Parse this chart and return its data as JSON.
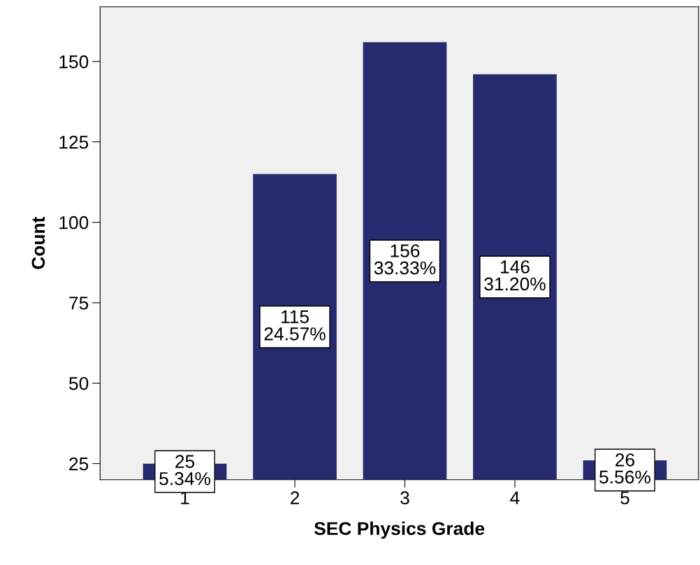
{
  "chart_data": {
    "type": "bar",
    "xlabel": "SEC Physics Grade",
    "ylabel": "Count",
    "categories": [
      "1",
      "2",
      "3",
      "4",
      "5"
    ],
    "values": [
      25,
      115,
      156,
      146,
      26
    ],
    "color": "#262a6e",
    "value_labels": [
      "25\n5.34%",
      "115\n24.57%",
      "156\n33.33%",
      "146\n31.20%",
      "26\n5.56%"
    ],
    "ylim": [
      20,
      167
    ],
    "yticks": [
      25,
      50,
      75,
      100,
      125,
      150
    ],
    "grid": false,
    "legend": false
  }
}
